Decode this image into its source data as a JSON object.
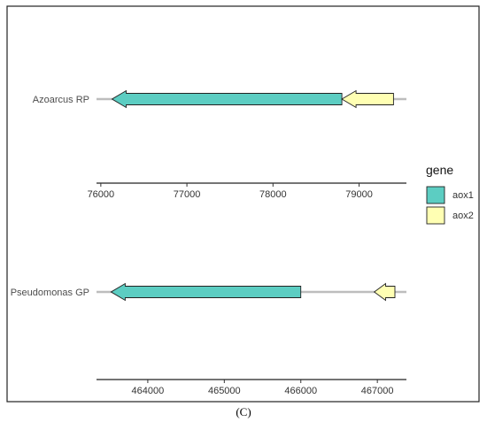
{
  "legend": {
    "title": "gene",
    "items": [
      {
        "label": "aox1",
        "color": "#5ccdc2"
      },
      {
        "label": "aox2",
        "color": "#ffffb3"
      }
    ]
  },
  "chart_data": {
    "type": "gene-arrow-map",
    "legend_placement": "right",
    "grid": false,
    "panels": [
      {
        "track_label": "Azoarcus RP",
        "xlim": [
          75950,
          79550
        ],
        "ticks": [
          "76000",
          "77000",
          "78000",
          "79000"
        ],
        "backbone": [
          75950,
          79550
        ],
        "genes": [
          {
            "gene": "aox1",
            "start": 76130,
            "end": 78800,
            "strand": "-"
          },
          {
            "gene": "aox2",
            "start": 78800,
            "end": 79400,
            "strand": "-"
          }
        ]
      },
      {
        "track_label": "Pseudomonas GP",
        "xlim": [
          463330,
          467380
        ],
        "ticks": [
          "464000",
          "465000",
          "466000",
          "467000"
        ],
        "backbone": [
          463330,
          467380
        ],
        "genes": [
          {
            "gene": "aox1",
            "start": 463520,
            "end": 466000,
            "strand": "-"
          },
          {
            "gene": "aox2",
            "start": 466960,
            "end": 467230,
            "strand": "-"
          }
        ]
      }
    ]
  },
  "caption": "(C)"
}
